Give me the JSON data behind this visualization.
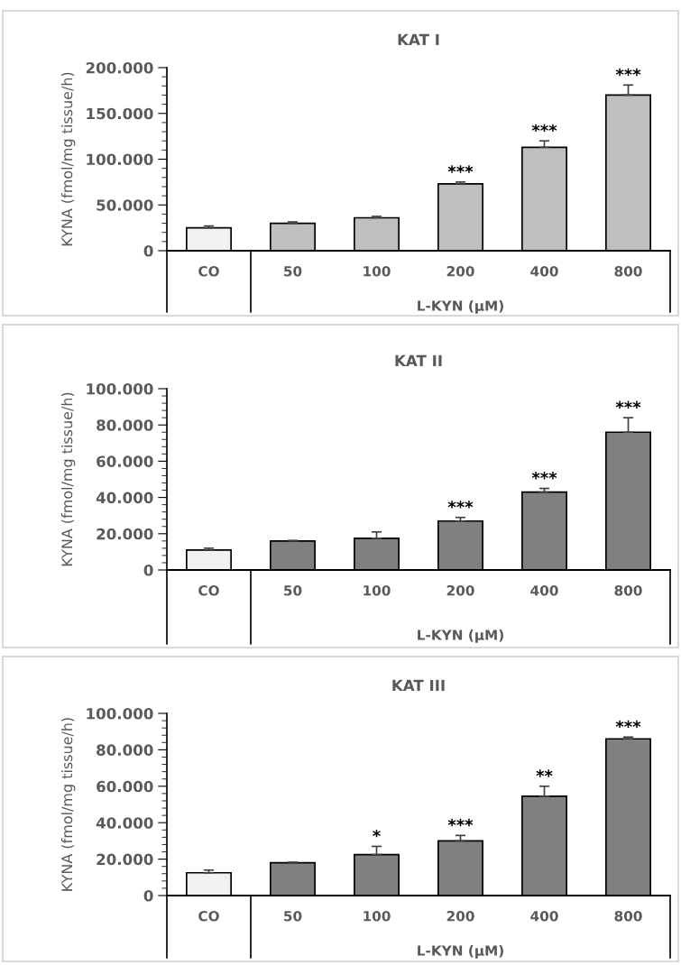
{
  "chart_data": [
    {
      "type": "bar",
      "title": "KAT I",
      "ylabel": "KYNA (fmol/mg tissue/h)",
      "xlabel": "L-KYN (µM)",
      "categories": [
        "CO",
        "50",
        "100",
        "200",
        "400",
        "800"
      ],
      "values": [
        25000,
        30000,
        36000,
        73000,
        113000,
        170000
      ],
      "errors": [
        2000,
        1500,
        1500,
        2000,
        7000,
        11000
      ],
      "colors": [
        "#f2f2f2",
        "#bfbfbf",
        "#bfbfbf",
        "#bfbfbf",
        "#bfbfbf",
        "#bfbfbf"
      ],
      "ylim": [
        0,
        200000
      ],
      "yticks": [
        0,
        {
          "value": 50000,
          "label": "50.000"
        },
        {
          "value": 100000,
          "label": "100.000"
        },
        {
          "value": 150000,
          "label": "150.000"
        },
        {
          "value": 200000,
          "label": "200.000"
        }
      ],
      "annotations": [
        {
          "text": "***",
          "x": "200",
          "y": 75000
        },
        {
          "text": "***",
          "x": "400",
          "y": 120000
        },
        {
          "text": "***",
          "x": "800",
          "y": 181000
        }
      ]
    },
    {
      "type": "bar",
      "title": "KAT II",
      "ylabel": "KYNA (fmol/mg tissue/h)",
      "xlabel": "L-KYN (µM)",
      "categories": [
        "CO",
        "50",
        "100",
        "200",
        "400",
        "800"
      ],
      "values": [
        11000,
        16000,
        17500,
        27000,
        43000,
        76000
      ],
      "errors": [
        1000,
        300,
        3500,
        2000,
        2000,
        8000
      ],
      "colors": [
        "#f2f2f2",
        "#808080",
        "#808080",
        "#808080",
        "#808080",
        "#808080"
      ],
      "ylim": [
        0,
        100000
      ],
      "yticks": [
        0,
        {
          "value": 20000,
          "label": "20.000"
        },
        {
          "value": 40000,
          "label": "40.000"
        },
        {
          "value": 60000,
          "label": "60.000"
        },
        {
          "value": 80000,
          "label": "80.000"
        },
        {
          "value": 100000,
          "label": "100.000"
        }
      ],
      "annotations": [
        {
          "text": "***",
          "x": "200",
          "y": 29000
        },
        {
          "text": "***",
          "x": "400",
          "y": 45000
        },
        {
          "text": "***",
          "x": "800",
          "y": 84000
        }
      ]
    },
    {
      "type": "bar",
      "title": "KAT III",
      "ylabel": "KYNA (fmol/mg tissue/h)",
      "xlabel": "L-KYN (µM)",
      "categories": [
        "CO",
        "50",
        "100",
        "200",
        "400",
        "800"
      ],
      "values": [
        12500,
        18000,
        22500,
        30000,
        54500,
        86000
      ],
      "errors": [
        1500,
        300,
        4500,
        3000,
        5500,
        1000
      ],
      "colors": [
        "#f2f2f2",
        "#808080",
        "#808080",
        "#808080",
        "#808080",
        "#808080"
      ],
      "ylim": [
        0,
        100000
      ],
      "yticks": [
        0,
        {
          "value": 20000,
          "label": "20.000"
        },
        {
          "value": 40000,
          "label": "40.000"
        },
        {
          "value": 60000,
          "label": "60.000"
        },
        {
          "value": 80000,
          "label": "80.000"
        },
        {
          "value": 100000,
          "label": "100.000"
        }
      ],
      "annotations": [
        {
          "text": "*",
          "x": "100",
          "y": 27000
        },
        {
          "text": "***",
          "x": "200",
          "y": 33000
        },
        {
          "text": "**",
          "x": "400",
          "y": 60000
        },
        {
          "text": "***",
          "x": "800",
          "y": 87000
        }
      ]
    }
  ]
}
